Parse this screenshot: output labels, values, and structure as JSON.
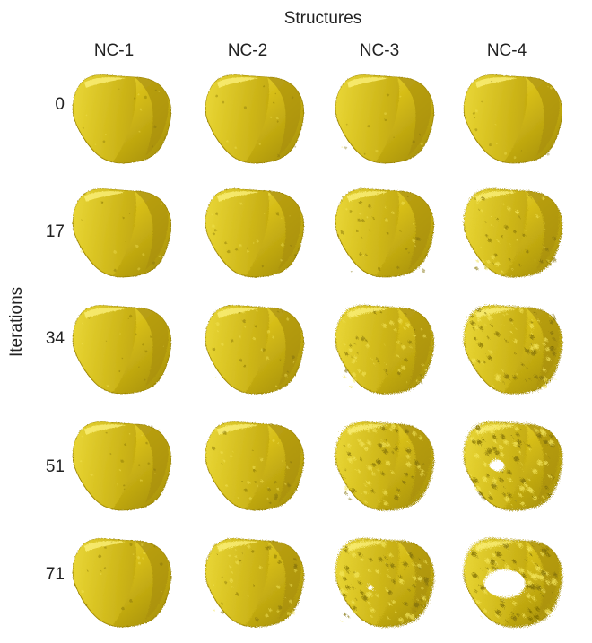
{
  "figure": {
    "column_axis_title": "Structures",
    "row_axis_title": "Iterations",
    "columns": [
      "NC-1",
      "NC-2",
      "NC-3",
      "NC-4"
    ],
    "rows": [
      "0",
      "17",
      "34",
      "51",
      "71"
    ],
    "colors": {
      "gold_base": "#c9b012",
      "gold_light": "#efe04a",
      "gold_dark": "#8c7a06",
      "background": "#ffffff"
    },
    "noise_level_by_column_and_row": [
      [
        0.05,
        0.08,
        0.1,
        0.12,
        0.14
      ],
      [
        0.05,
        0.15,
        0.22,
        0.3,
        0.38
      ],
      [
        0.05,
        0.3,
        0.55,
        0.75,
        0.85
      ],
      [
        0.05,
        0.55,
        0.8,
        0.92,
        1.0
      ]
    ]
  }
}
